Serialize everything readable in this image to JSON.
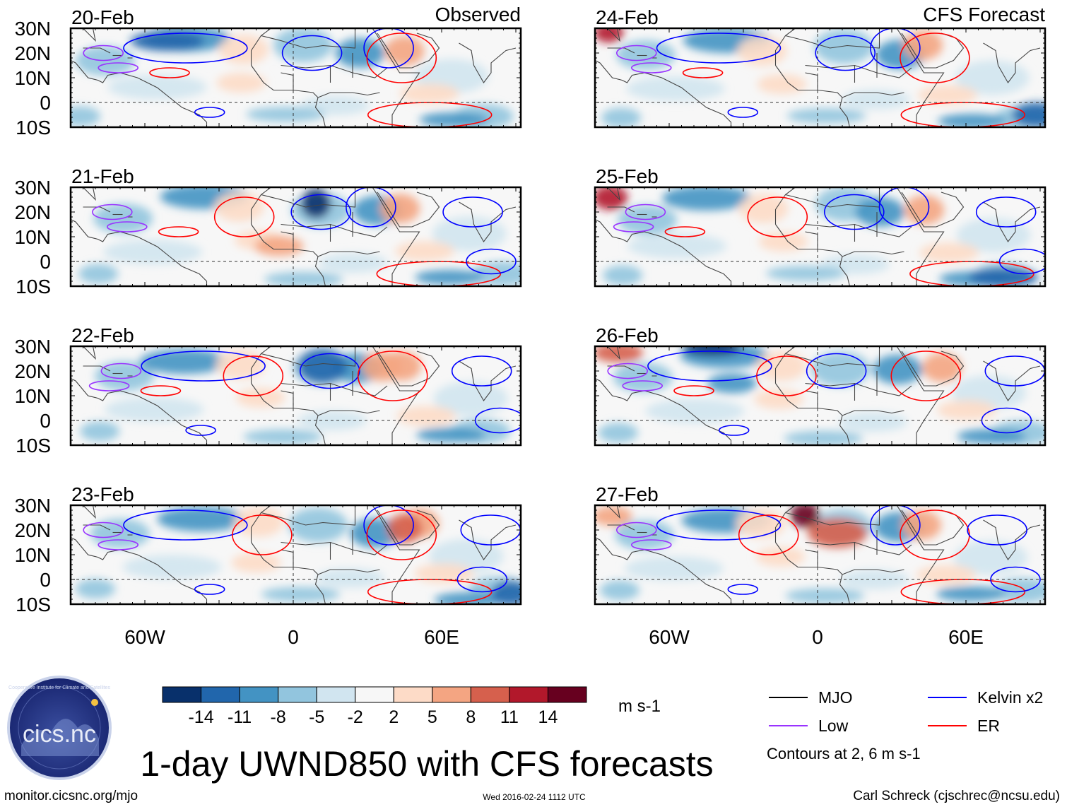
{
  "figure_title": "1-day UWND850 with CFS forecasts",
  "left_heading": "Observed",
  "right_heading": "CFS Forecast",
  "lat_labels": [
    "30N",
    "20N",
    "10N",
    "0",
    "10S"
  ],
  "lon_labels": [
    "60W",
    "0",
    "60E"
  ],
  "panels_observed": [
    {
      "date": "20-Feb"
    },
    {
      "date": "21-Feb"
    },
    {
      "date": "22-Feb"
    },
    {
      "date": "23-Feb"
    }
  ],
  "panels_forecast": [
    {
      "date": "24-Feb"
    },
    {
      "date": "25-Feb"
    },
    {
      "date": "26-Feb"
    },
    {
      "date": "27-Feb"
    }
  ],
  "colorbar": {
    "tick_labels": [
      "-14",
      "-11",
      "-8",
      "-5",
      "-2",
      "2",
      "5",
      "8",
      "11",
      "14"
    ],
    "units": "m s-1",
    "colors": [
      "#08306b",
      "#2166ac",
      "#4393c3",
      "#92c5de",
      "#d1e5f0",
      "#f7f7f7",
      "#fddbc7",
      "#f4a582",
      "#d6604d",
      "#b2182b",
      "#67001f"
    ]
  },
  "legend": {
    "items": [
      {
        "label": "MJO",
        "color": "#000000"
      },
      {
        "label": "Kelvin x2",
        "color": "#0000ff"
      },
      {
        "label": "Low",
        "color": "#9933ff"
      },
      {
        "label": "ER",
        "color": "#ff0000"
      }
    ],
    "note": "Contours at 2, 6 m s-1"
  },
  "logo_text": "cics.nc",
  "logo_ring_text": "Cooperative Institute for Climate and Satellites",
  "footer": {
    "url": "monitor.cicsnc.org/mjo",
    "timestamp": "Wed 2016-02-24 1112 UTC",
    "author": "Carl Schreck (cjschrec@ncsu.edu)"
  }
}
